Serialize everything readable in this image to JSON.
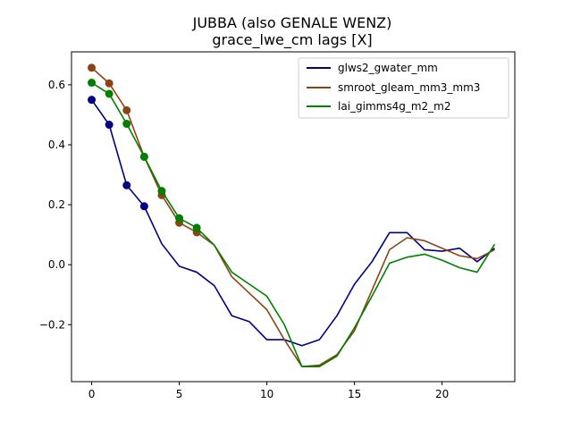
{
  "chart_data": {
    "type": "line",
    "title_line1": "JUBBA (also GENALE WENZ)",
    "title_line2": "grace_lwe_cm lags [X]",
    "xlabel": "",
    "ylabel": "",
    "xlim": [
      -1.15,
      24.15
    ],
    "ylim": [
      -0.39,
      0.71
    ],
    "xticks": [
      0,
      5,
      10,
      15,
      20
    ],
    "yticks": [
      -0.2,
      0.0,
      0.2,
      0.4,
      0.6
    ],
    "ytick_labels": [
      "−0.2",
      "0.0",
      "0.2",
      "0.4",
      "0.6"
    ],
    "grid": false,
    "legend_position": "upper right",
    "x": [
      0,
      1,
      2,
      3,
      4,
      5,
      6,
      7,
      8,
      9,
      10,
      11,
      12,
      13,
      14,
      15,
      16,
      17,
      18,
      19,
      20,
      21,
      22,
      23
    ],
    "series": [
      {
        "name": "glws2_gwater_mm",
        "color": "#000080",
        "values": [
          0.55,
          0.467,
          0.265,
          0.195,
          0.07,
          -0.005,
          -0.025,
          -0.07,
          -0.17,
          -0.19,
          -0.25,
          -0.25,
          -0.27,
          -0.25,
          -0.17,
          -0.065,
          0.01,
          0.107,
          0.107,
          0.05,
          0.045,
          0.055,
          0.01,
          0.055
        ],
        "markers_at": [
          0,
          1,
          2,
          3
        ]
      },
      {
        "name": "smroot_gleam_mm3_mm3",
        "color": "#8B4513",
        "values": [
          0.657,
          0.605,
          0.515,
          0.36,
          0.232,
          0.14,
          0.108,
          0.065,
          -0.04,
          -0.095,
          -0.15,
          -0.25,
          -0.34,
          -0.335,
          -0.3,
          -0.22,
          -0.085,
          0.05,
          0.09,
          0.08,
          0.055,
          0.03,
          0.02,
          0.05
        ],
        "markers_at": [
          0,
          1,
          2,
          3,
          4,
          5,
          6
        ]
      },
      {
        "name": "lai_gimms4g_m2_m2",
        "color": "#008000",
        "values": [
          0.607,
          0.57,
          0.47,
          0.36,
          0.246,
          0.155,
          0.123,
          0.065,
          -0.025,
          -0.065,
          -0.105,
          -0.2,
          -0.34,
          -0.34,
          -0.305,
          -0.21,
          -0.105,
          0.005,
          0.025,
          0.035,
          0.015,
          -0.01,
          -0.025,
          0.068
        ],
        "markers_at": [
          0,
          1,
          2,
          3,
          4,
          5,
          6
        ]
      }
    ]
  }
}
